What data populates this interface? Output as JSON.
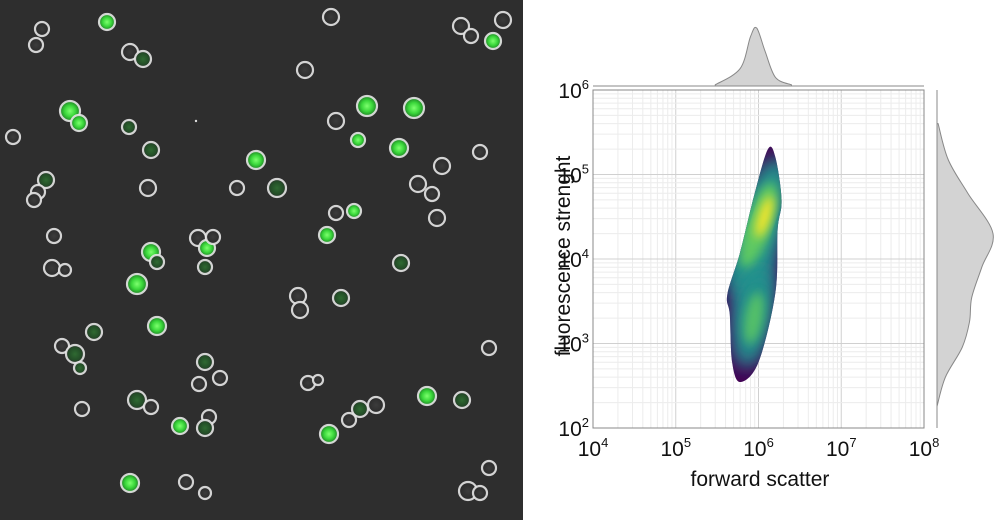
{
  "microscopy": {
    "background": "#2e2e2e",
    "membrane_color": "#e6e6e6",
    "fluorescence_color": "#39d63a"
  },
  "chart_data": {
    "type": "heatmap",
    "subtype": "2d-density-with-marginals",
    "title": "",
    "xlabel": "forward scatter",
    "ylabel": "fluorescence strenght",
    "xscale": "log",
    "yscale": "log",
    "xlim": [
      10000,
      100000000
    ],
    "ylim": [
      100,
      1000000
    ],
    "xticks": [
      {
        "base": "10",
        "exp": "4"
      },
      {
        "base": "10",
        "exp": "5"
      },
      {
        "base": "10",
        "exp": "6"
      },
      {
        "base": "10",
        "exp": "7"
      },
      {
        "base": "10",
        "exp": "8"
      }
    ],
    "yticks": [
      {
        "base": "10",
        "exp": "2"
      },
      {
        "base": "10",
        "exp": "3"
      },
      {
        "base": "10",
        "exp": "4"
      },
      {
        "base": "10",
        "exp": "5"
      },
      {
        "base": "10",
        "exp": "6"
      }
    ],
    "grid": true,
    "colormap": [
      "#440154",
      "#3b528b",
      "#21918c",
      "#5ec962",
      "#fde725"
    ],
    "density_outline": [
      [
        600000,
        350
      ],
      [
        1000000,
        600
      ],
      [
        1600000,
        4000
      ],
      [
        1700000,
        22000
      ],
      [
        1900000,
        50000
      ],
      [
        1600000,
        160000
      ],
      [
        1300000,
        200000
      ],
      [
        900000,
        60000
      ],
      [
        600000,
        12000
      ],
      [
        420000,
        3800
      ],
      [
        450000,
        2200
      ],
      [
        480000,
        600
      ]
    ],
    "density_core": [
      [
        1000000,
        25000
      ],
      [
        880000,
        2000
      ]
    ],
    "marginal_x": {
      "fill": "#d3d3d3",
      "points": [
        [
          300000,
          0.02
        ],
        [
          600000,
          0.3
        ],
        [
          800000,
          0.85
        ],
        [
          950000,
          1.0
        ],
        [
          1200000,
          0.6
        ],
        [
          1600000,
          0.15
        ],
        [
          2500000,
          0.02
        ]
      ]
    },
    "marginal_y": {
      "fill": "#d3d3d3",
      "points": [
        [
          180,
          0.0
        ],
        [
          400,
          0.15
        ],
        [
          900,
          0.45
        ],
        [
          1800,
          0.58
        ],
        [
          3500,
          0.62
        ],
        [
          8000,
          0.8
        ],
        [
          20000,
          1.0
        ],
        [
          60000,
          0.55
        ],
        [
          150000,
          0.2
        ],
        [
          400000,
          0.02
        ]
      ]
    }
  }
}
